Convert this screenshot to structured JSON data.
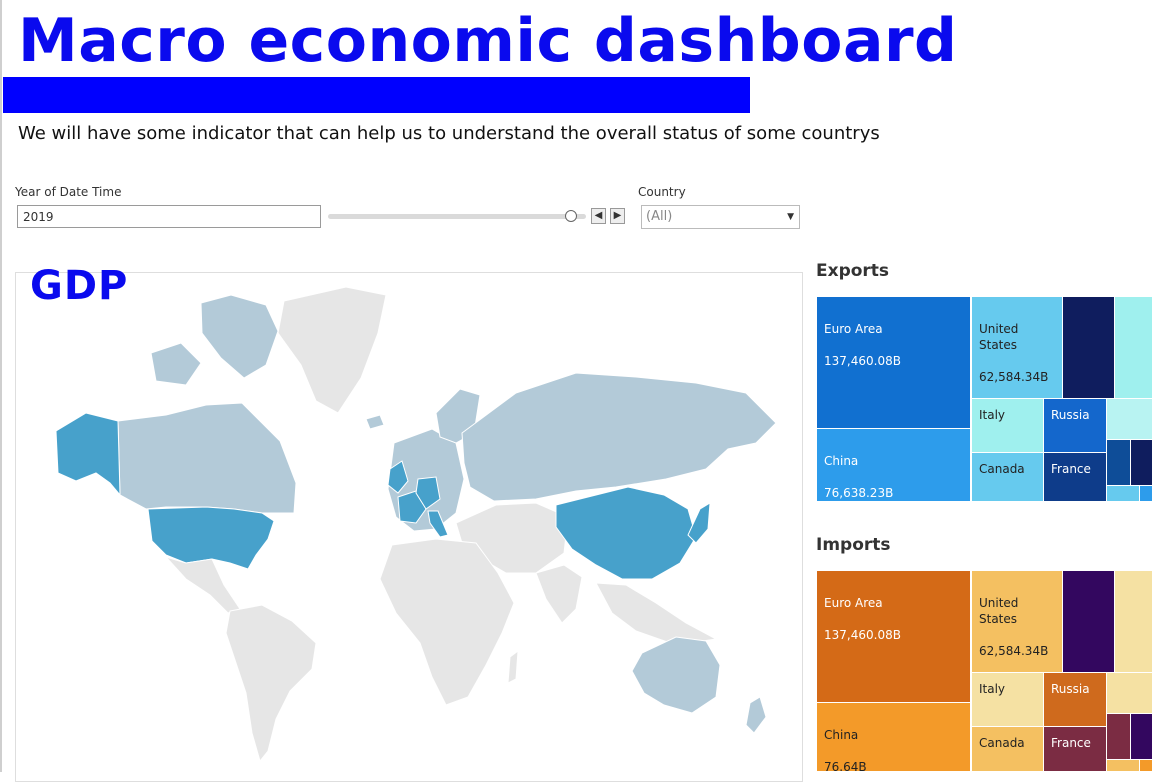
{
  "header": {
    "title": "Macro economic dashboard",
    "subtitle": "We will have some indicator that can help us to understand the overall status of some countrys"
  },
  "filters": {
    "year_label": "Year of Date Time",
    "year_value": "2019",
    "prev_icon": "chevron-left-icon",
    "next_icon": "chevron-right-icon",
    "country_label": "Country",
    "country_value": "(All)",
    "country_dropdown_icon": "chevron-down-icon"
  },
  "gdp": {
    "title": "GDP",
    "highlight_color": "#47a1cb",
    "muted_color": "#b3cad8",
    "no_data_color": "#e6e6e6"
  },
  "exports": {
    "title": "Exports",
    "tiles": [
      {
        "name": "Euro Area",
        "value": "137,460.08B",
        "color": "#1170d0"
      },
      {
        "name": "United States",
        "value": "62,584.34B",
        "color": "#66caee"
      },
      {
        "name": "China",
        "value": "76,638.23B",
        "color": "#2d9ceb"
      },
      {
        "name": "Italy",
        "value": "",
        "color": "#9ff0ee"
      },
      {
        "name": "Russia",
        "value": "",
        "color": "#1467cc"
      },
      {
        "name": "Canada",
        "value": "",
        "color": "#66caee"
      },
      {
        "name": "France",
        "value": "",
        "color": "#0e3c8a"
      }
    ]
  },
  "imports": {
    "title": "Imports",
    "tiles": [
      {
        "name": "Euro Area",
        "value": "137,460.08B",
        "color": "#d46a17"
      },
      {
        "name": "United States",
        "value": "62,584.34B",
        "color": "#f4c061"
      },
      {
        "name": "China",
        "value": "76.64B",
        "color": "#f39a29"
      },
      {
        "name": "Italy",
        "value": "",
        "color": "#f5e1a3"
      },
      {
        "name": "Russia",
        "value": "",
        "color": "#cf6a1d"
      },
      {
        "name": "Canada",
        "value": "",
        "color": "#f4c061"
      },
      {
        "name": "France",
        "value": "",
        "color": "#7b2c43"
      }
    ]
  }
}
